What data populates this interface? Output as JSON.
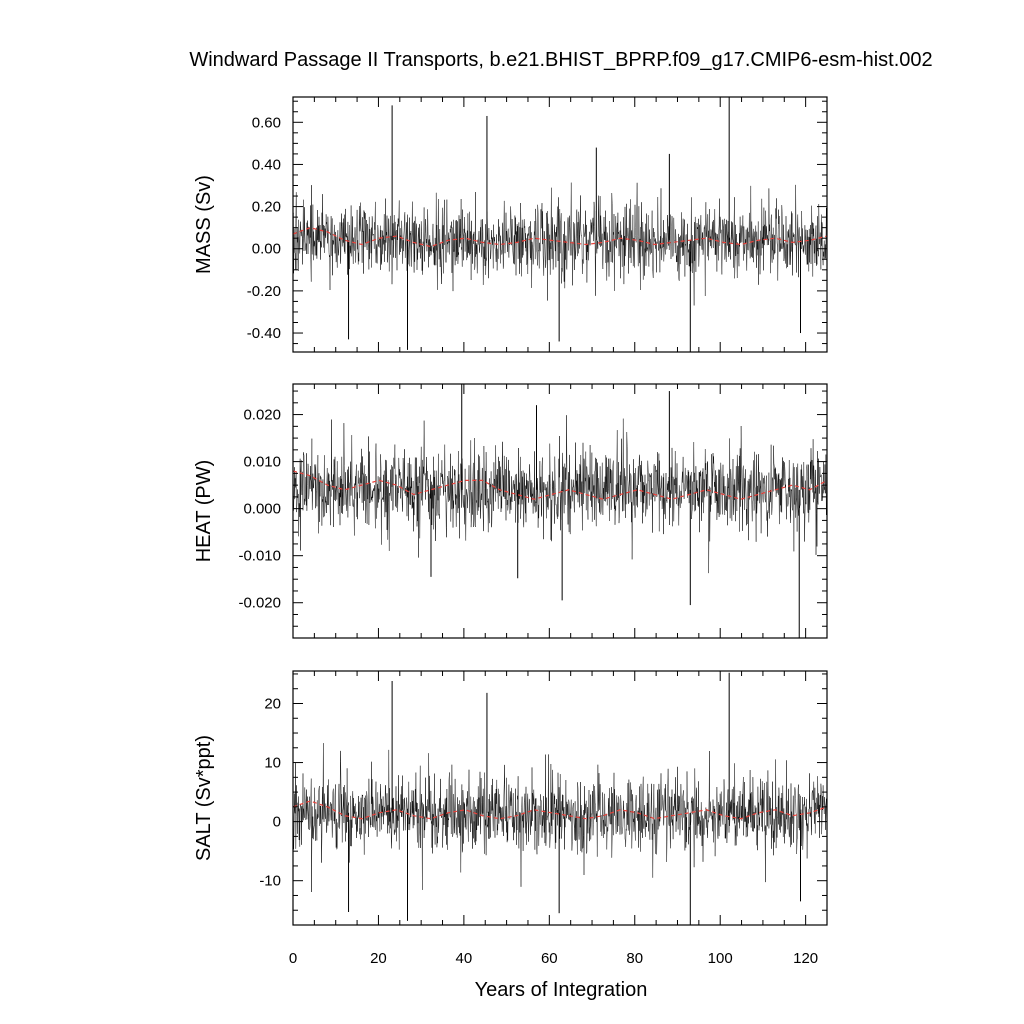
{
  "figure": {
    "title": "Windward Passage II Transports, b.e21.BHIST_BPRP.f09_g17.CMIP6-esm-hist.002",
    "xlabel": "Years of Integration",
    "x_ticks": [
      "0",
      "20",
      "40",
      "60",
      "80",
      "100",
      "120"
    ]
  },
  "colors": {
    "raw_series": "#000000",
    "smoothed_series": "#e8413a",
    "axes": "#000000"
  },
  "chart_data": [
    {
      "type": "line",
      "panel": "MASS",
      "ylabel": "MASS (Sv)",
      "xlim": [
        0,
        125
      ],
      "ylim": [
        -0.49,
        0.72
      ],
      "y_ticks": [
        -0.4,
        -0.2,
        0.0,
        0.2,
        0.4,
        0.6
      ],
      "y_tick_labels": [
        "-0.40",
        "-0.20",
        "0.00",
        "0.20",
        "0.40",
        "0.60"
      ],
      "series": [
        {
          "role": "monthly",
          "mean": 0.04,
          "std": 0.09
        },
        {
          "role": "running-mean",
          "values": [
            0.07,
            0.1,
            0.08,
            0.04,
            0.02,
            0.05,
            0.06,
            0.03,
            0.01,
            0.04,
            0.05,
            0.03,
            0.02,
            0.03,
            0.05,
            0.04,
            0.03,
            0.02,
            0.03,
            0.05,
            0.04,
            0.02,
            0.03,
            0.04,
            0.05,
            0.03,
            0.02,
            0.04,
            0.05,
            0.03,
            0.04,
            0.06
          ]
        }
      ],
      "spikes": [
        {
          "x": 23.2,
          "y": 0.68
        },
        {
          "x": 45.4,
          "y": 0.63
        },
        {
          "x": 102.1,
          "y": 0.72
        },
        {
          "x": 71.0,
          "y": 0.48
        },
        {
          "x": 88.1,
          "y": 0.45
        },
        {
          "x": 26.8,
          "y": -0.48
        },
        {
          "x": 93.0,
          "y": -0.49
        },
        {
          "x": 13.0,
          "y": -0.43
        },
        {
          "x": 62.3,
          "y": -0.44
        },
        {
          "x": 118.8,
          "y": -0.4
        }
      ]
    },
    {
      "type": "line",
      "panel": "HEAT",
      "ylabel": "HEAT (PW)",
      "xlim": [
        0,
        125
      ],
      "ylim": [
        -0.0275,
        0.0265
      ],
      "y_ticks": [
        -0.02,
        -0.01,
        0.0,
        0.01,
        0.02
      ],
      "y_tick_labels": [
        "-0.020",
        "-0.010",
        "0.000",
        "0.010",
        "0.020"
      ],
      "series": [
        {
          "role": "monthly",
          "mean": 0.004,
          "std": 0.0045
        },
        {
          "role": "running-mean",
          "values": [
            0.008,
            0.007,
            0.005,
            0.004,
            0.005,
            0.006,
            0.005,
            0.003,
            0.004,
            0.005,
            0.006,
            0.006,
            0.004,
            0.003,
            0.002,
            0.003,
            0.004,
            0.003,
            0.002,
            0.003,
            0.004,
            0.003,
            0.002,
            0.003,
            0.004,
            0.003,
            0.002,
            0.003,
            0.004,
            0.005,
            0.004,
            0.006
          ]
        }
      ],
      "spikes": [
        {
          "x": 39.5,
          "y": 0.0265
        },
        {
          "x": 88.1,
          "y": 0.025
        },
        {
          "x": 57.0,
          "y": 0.022
        },
        {
          "x": 118.5,
          "y": -0.0275
        },
        {
          "x": 93.0,
          "y": -0.0205
        },
        {
          "x": 63.0,
          "y": -0.0195
        },
        {
          "x": 32.3,
          "y": -0.0145
        },
        {
          "x": 52.6,
          "y": -0.0148
        }
      ]
    },
    {
      "type": "line",
      "panel": "SALT",
      "ylabel": "SALT (Sv*ppt)",
      "xlim": [
        0,
        125
      ],
      "ylim": [
        -17.5,
        25.5
      ],
      "y_ticks": [
        -10,
        0,
        10,
        20
      ],
      "y_tick_labels": [
        "-10",
        "0",
        "10",
        "20"
      ],
      "series": [
        {
          "role": "monthly",
          "mean": 1.5,
          "std": 3.2
        },
        {
          "role": "running-mean",
          "values": [
            2.5,
            3.5,
            2.5,
            1.0,
            0.5,
            1.5,
            2.0,
            1.0,
            0.5,
            1.5,
            2.0,
            1.0,
            0.5,
            1.0,
            2.0,
            1.5,
            1.0,
            0.5,
            1.0,
            2.0,
            1.5,
            0.5,
            1.0,
            1.5,
            2.0,
            1.0,
            0.5,
            1.5,
            2.0,
            1.0,
            1.5,
            2.5
          ]
        }
      ],
      "spikes": [
        {
          "x": 23.2,
          "y": 23.8
        },
        {
          "x": 45.4,
          "y": 21.8
        },
        {
          "x": 102.1,
          "y": 25.2
        },
        {
          "x": 26.8,
          "y": -16.8
        },
        {
          "x": 93.0,
          "y": -17.5
        },
        {
          "x": 13.0,
          "y": -15.3
        },
        {
          "x": 62.3,
          "y": -15.5
        },
        {
          "x": 118.8,
          "y": -13.5
        }
      ]
    }
  ]
}
